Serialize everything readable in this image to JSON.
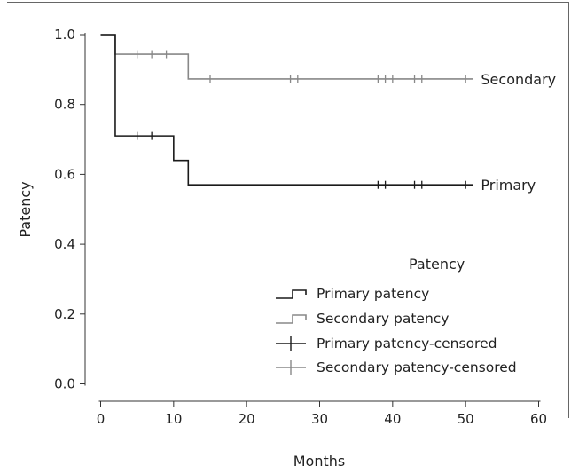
{
  "chart_data": {
    "type": "line",
    "title": "",
    "xlabel": "Months",
    "ylabel": "Patency",
    "xlim": [
      0,
      60
    ],
    "ylim": [
      0,
      1.0
    ],
    "xticks": [
      0,
      10,
      20,
      30,
      40,
      50,
      60
    ],
    "yticks": [
      0.0,
      0.2,
      0.4,
      0.6,
      0.8,
      1.0
    ],
    "xtick_labels": [
      "0",
      "10",
      "20",
      "30",
      "40",
      "50",
      "60"
    ],
    "ytick_labels": [
      "0.0",
      "0.2",
      "0.4",
      "0.6",
      "0.8",
      "1.0"
    ],
    "grid": false,
    "legend_placement": "bottom-right",
    "legend_title": "Patency",
    "series": [
      {
        "key": "primary",
        "name": "Primary patency",
        "end_label": "Primary",
        "color": "#1a1a1a",
        "steps": [
          [
            0,
            1.0
          ],
          [
            2,
            0.71
          ],
          [
            10,
            0.64
          ],
          [
            12,
            0.57
          ],
          [
            51,
            0.57
          ]
        ],
        "censored": [
          5,
          7,
          38,
          39,
          43,
          44,
          50
        ]
      },
      {
        "key": "secondary",
        "name": "Secondary patency",
        "end_label": "Secondary",
        "color": "#888888",
        "steps": [
          [
            0,
            1.0
          ],
          [
            2,
            0.944
          ],
          [
            12,
            0.873
          ],
          [
            51,
            0.873
          ]
        ],
        "censored": [
          5,
          7,
          9,
          15,
          26,
          27,
          38,
          39,
          40,
          43,
          44,
          50
        ]
      }
    ],
    "legend": [
      {
        "label": "Primary patency",
        "symbol": "step",
        "color": "#1a1a1a"
      },
      {
        "label": "Secondary patency",
        "symbol": "step",
        "color": "#888888"
      },
      {
        "label": "Primary patency-censored",
        "symbol": "cross",
        "color": "#1a1a1a"
      },
      {
        "label": "Secondary patency-censored",
        "symbol": "cross",
        "color": "#888888"
      }
    ]
  }
}
